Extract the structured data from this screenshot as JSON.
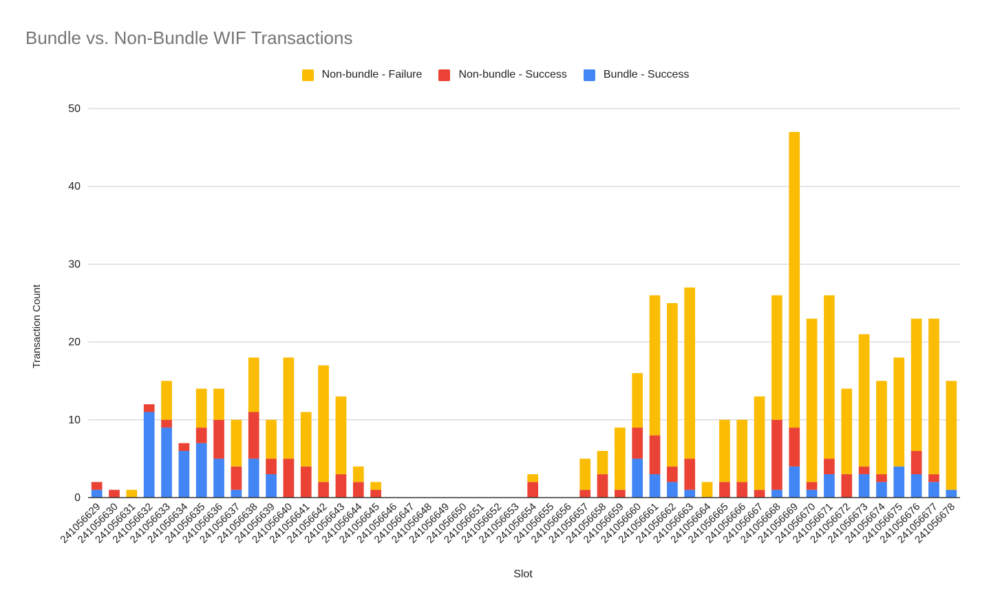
{
  "chart_data": {
    "type": "bar",
    "stacked": true,
    "title": "Bundle vs. Non-Bundle WIF Transactions",
    "xlabel": "Slot",
    "ylabel": "Transaction Count",
    "ylim": [
      0,
      50
    ],
    "yticks": [
      "0",
      "10",
      "20",
      "30",
      "40",
      "50"
    ],
    "ytick_values": [
      0,
      10,
      20,
      30,
      40,
      50
    ],
    "grid": true,
    "legend_position": "top-center",
    "categories": [
      "241056629",
      "241056630",
      "241056631",
      "241056632",
      "241056633",
      "241056634",
      "241056635",
      "241056636",
      "241056637",
      "241056638",
      "241056639",
      "241056640",
      "241056641",
      "241056642",
      "241056643",
      "241056644",
      "241056645",
      "241056646",
      "241056647",
      "241056648",
      "241056649",
      "241056650",
      "241056651",
      "241056652",
      "241056653",
      "241056654",
      "241056655",
      "241056656",
      "241056657",
      "241056658",
      "241056659",
      "241056660",
      "241056661",
      "241056662",
      "241056663",
      "241056664",
      "241056665",
      "241056666",
      "241056667",
      "241056668",
      "241056669",
      "241056670",
      "241056671",
      "241056672",
      "241056673",
      "241056674",
      "241056675",
      "241056676",
      "241056677",
      "241056678"
    ],
    "series": [
      {
        "name": "Bundle - Success",
        "color": "#4285f4",
        "values": [
          1,
          0,
          0,
          11,
          9,
          6,
          7,
          5,
          1,
          5,
          3,
          0,
          0,
          0,
          0,
          0,
          0,
          0,
          0,
          0,
          0,
          0,
          0,
          0,
          0,
          0,
          0,
          0,
          0,
          0,
          0,
          5,
          3,
          2,
          1,
          0,
          0,
          0,
          0,
          1,
          4,
          1,
          3,
          0,
          3,
          2,
          4,
          3,
          2,
          1
        ]
      },
      {
        "name": "Non-bundle - Success",
        "color": "#ea4335",
        "values": [
          1,
          1,
          0,
          1,
          1,
          1,
          2,
          5,
          3,
          6,
          2,
          5,
          4,
          2,
          3,
          2,
          1,
          0,
          0,
          0,
          0,
          0,
          0,
          0,
          0,
          2,
          0,
          0,
          1,
          3,
          1,
          4,
          5,
          2,
          4,
          0,
          2,
          2,
          1,
          9,
          5,
          1,
          2,
          3,
          1,
          1,
          0,
          3,
          1,
          0
        ]
      },
      {
        "name": "Non-bundle - Failure",
        "color": "#fbbc04",
        "values": [
          0,
          0,
          1,
          0,
          5,
          0,
          5,
          4,
          6,
          7,
          5,
          13,
          7,
          15,
          10,
          2,
          1,
          0,
          0,
          0,
          0,
          0,
          0,
          0,
          0,
          1,
          0,
          0,
          4,
          3,
          8,
          7,
          18,
          21,
          22,
          2,
          8,
          8,
          12,
          16,
          38,
          21,
          21,
          11,
          17,
          12,
          14,
          17,
          20,
          14
        ]
      }
    ],
    "legend_order": [
      "Non-bundle - Failure",
      "Non-bundle - Success",
      "Bundle - Success"
    ]
  },
  "colors": {
    "gridline": "#cccccc",
    "axis": "#333333",
    "title": "#757575",
    "text": "#222222"
  }
}
